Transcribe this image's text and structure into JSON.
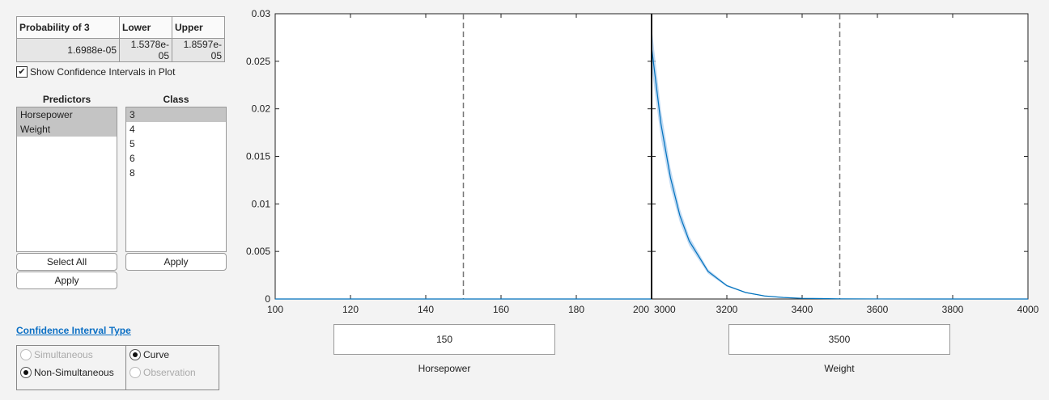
{
  "table": {
    "headers": [
      "Probability of 3",
      "Lower",
      "Upper"
    ],
    "values": [
      "1.6988e-05",
      "1.5378e-05",
      "1.8597e-05"
    ]
  },
  "show_ci": {
    "label": "Show Confidence Intervals in Plot",
    "checked": true
  },
  "predictors": {
    "label": "Predictors",
    "items": [
      "Horsepower",
      "Weight"
    ],
    "selected": [
      "Horsepower",
      "Weight"
    ],
    "select_all": "Select All",
    "apply": "Apply"
  },
  "class": {
    "label": "Class",
    "items": [
      "3",
      "4",
      "5",
      "6",
      "8"
    ],
    "selected": "3",
    "apply": "Apply"
  },
  "ci_type": {
    "label": "Confidence Interval Type",
    "simultaneous": "Simultaneous",
    "non_simultaneous": "Non-Simultaneous",
    "curve": "Curve",
    "observation": "Observation",
    "selected_left": "Non-Simultaneous",
    "selected_right": "Curve"
  },
  "sliders": [
    {
      "value": "150",
      "label": "Horsepower"
    },
    {
      "value": "3500",
      "label": "Weight"
    }
  ],
  "colors": {
    "curve": "#0072bd",
    "band": "#a6cbee"
  },
  "chart_data": [
    {
      "type": "line",
      "xlabel": "Horsepower",
      "xlim": [
        100,
        200
      ],
      "ylim": [
        0,
        0.03
      ],
      "xticks": [
        "100",
        "120",
        "140",
        "160",
        "180",
        "200"
      ],
      "yticks": [
        "0",
        "0.005",
        "0.01",
        "0.015",
        "0.02",
        "0.025",
        "0.03"
      ],
      "marker_line": 150,
      "x": [
        100,
        120,
        140,
        160,
        180,
        200
      ],
      "y": [
        0,
        0,
        0,
        0,
        0,
        0
      ]
    },
    {
      "type": "line",
      "xlabel": "Weight",
      "xlim": [
        3000,
        4000
      ],
      "ylim": [
        0,
        0.03
      ],
      "xticks": [
        "3000",
        "3200",
        "3400",
        "3600",
        "3800",
        "4000"
      ],
      "marker_line": 3500,
      "x": [
        3000,
        3025,
        3050,
        3075,
        3100,
        3150,
        3200,
        3250,
        3300,
        3350,
        3400,
        3500,
        3600,
        3800,
        4000
      ],
      "y": [
        0.0265,
        0.0184,
        0.0128,
        0.0088,
        0.0061,
        0.0029,
        0.0014,
        0.00068,
        0.00032,
        0.00016,
        7e-05,
        1.7e-05,
        4e-06,
        0,
        0
      ]
    }
  ]
}
